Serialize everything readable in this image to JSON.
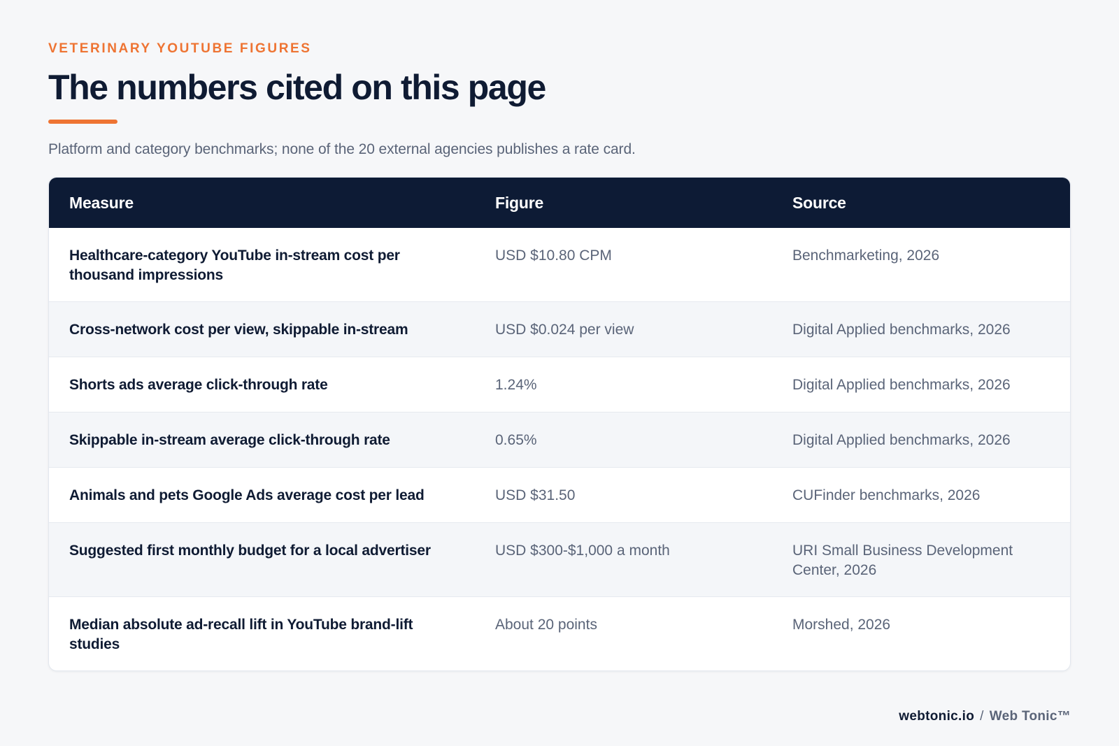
{
  "header": {
    "eyebrow": "VETERINARY YOUTUBE FIGURES",
    "title": "The numbers cited on this page",
    "subtitle": "Platform and category benchmarks; none of the 20 external agencies publishes a rate card."
  },
  "table": {
    "columns": [
      "Measure",
      "Figure",
      "Source"
    ],
    "rows": [
      {
        "measure": "Healthcare-category YouTube in-stream cost per thousand impressions",
        "figure": "USD $10.80 CPM",
        "source": "Benchmarketing, 2026"
      },
      {
        "measure": "Cross-network cost per view, skippable in-stream",
        "figure": "USD $0.024 per view",
        "source": "Digital Applied benchmarks, 2026"
      },
      {
        "measure": "Shorts ads average click-through rate",
        "figure": "1.24%",
        "source": "Digital Applied benchmarks, 2026"
      },
      {
        "measure": "Skippable in-stream average click-through rate",
        "figure": "0.65%",
        "source": "Digital Applied benchmarks, 2026"
      },
      {
        "measure": "Animals and pets Google Ads average cost per lead",
        "figure": "USD $31.50",
        "source": "CUFinder benchmarks, 2026"
      },
      {
        "measure": "Suggested first monthly budget for a local advertiser",
        "figure": "USD $300-$1,000 a month",
        "source": "URI Small Business Development Center, 2026"
      },
      {
        "measure": "Median absolute ad-recall lift in YouTube brand-lift studies",
        "figure": "About 20 points",
        "source": "Morshed, 2026"
      }
    ]
  },
  "footer": {
    "domain": "webtonic.io",
    "separator": "/",
    "brand": "Web Tonic™"
  },
  "colors": {
    "accent": "#ee7433",
    "header_bg": "#0d1b35",
    "text_dark": "#0f1b33",
    "text_muted": "#5a6478",
    "page_bg": "#f6f7f9"
  }
}
